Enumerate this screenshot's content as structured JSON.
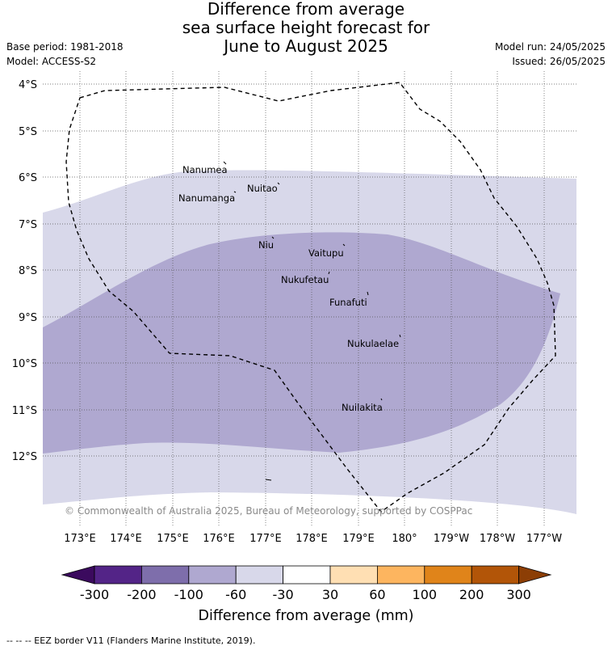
{
  "title_lines": [
    "Difference from average",
    "sea surface height forecast for",
    "June to August 2025"
  ],
  "base_period": "Base period: 1981-2018",
  "model": "Model: ACCESS-S2",
  "model_run": "Model run: 24/05/2025",
  "issued": "Issued: 26/05/2025",
  "lat_labels": [
    "4°S",
    "5°S",
    "6°S",
    "7°S",
    "8°S",
    "9°S",
    "10°S",
    "11°S",
    "12°S"
  ],
  "lon_labels": [
    "173°E",
    "174°E",
    "175°E",
    "176°E",
    "177°E",
    "178°E",
    "179°E",
    "180°",
    "179°W",
    "178°W",
    "177°W"
  ],
  "islands": [
    {
      "name": "Nanumea"
    },
    {
      "name": "Nuitao"
    },
    {
      "name": "Nanumanga"
    },
    {
      "name": "Niu"
    },
    {
      "name": "Vaitupu"
    },
    {
      "name": "Nukufetau"
    },
    {
      "name": "Funafuti"
    },
    {
      "name": "Nukulaelae"
    },
    {
      "name": "Nuilakita"
    }
  ],
  "copyright": "© Commonwealth of Australia 2025, Bureau of Meteorology, supported by COSPPac",
  "colorbar": {
    "labels": [
      "-300",
      "-200",
      "-100",
      "-60",
      "-30",
      "30",
      "60",
      "100",
      "200",
      "300"
    ],
    "colors": [
      "#532487",
      "#7e6eab",
      "#afa8d0",
      "#d8d8ea",
      "#ffffff",
      "#ffdfb3",
      "#fdb55f",
      "#e0841a",
      "#b25508"
    ],
    "low_extend_color": "#3b0a5e",
    "high_extend_color": "#8c3e05",
    "title": "Difference from average (mm)"
  },
  "footnote": "--  --  -- EEZ border V11 (Flanders Marine Institute, 2019)."
}
